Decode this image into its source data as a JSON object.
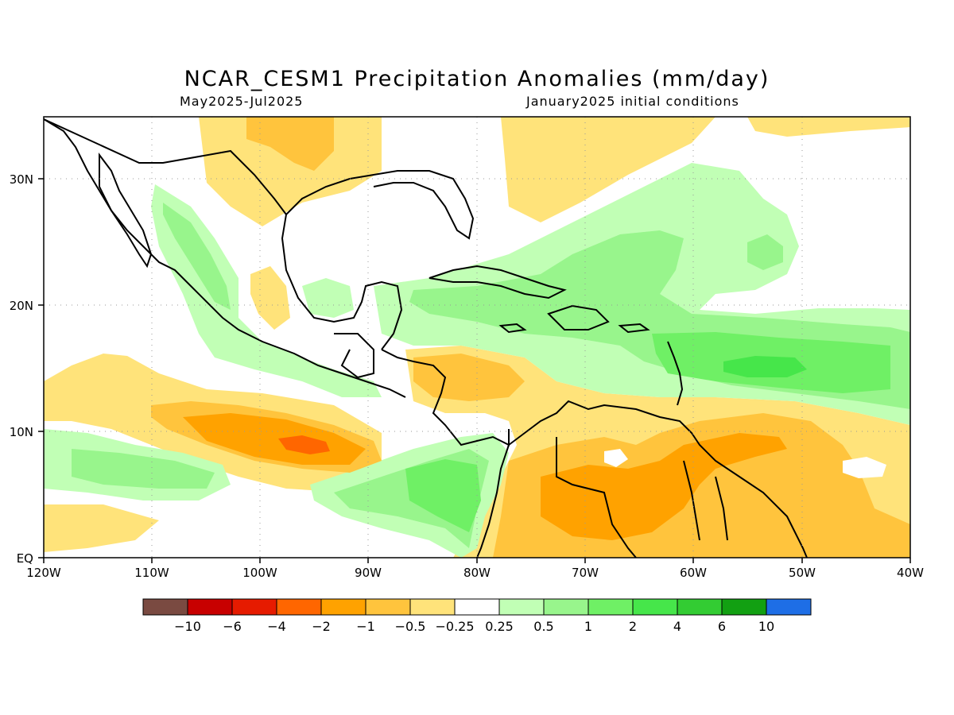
{
  "title": "NCAR_CESM1 Precipitation Anomalies (mm/day)",
  "subtitle_left": "May2025-Jul2025",
  "subtitle_right": "January2025 initial conditions",
  "axes": {
    "lon_labels": [
      "120W",
      "110W",
      "100W",
      "90W",
      "80W",
      "70W",
      "60W",
      "50W",
      "40W"
    ],
    "lat_labels": [
      "EQ",
      "10N",
      "20N",
      "30N"
    ]
  },
  "colorbar": {
    "colors": [
      "#7a4a41",
      "#c80000",
      "#e61b00",
      "#ff6600",
      "#ffa200",
      "#ffc43d",
      "#ffe37a",
      "#ffffff",
      "#c1ffb5",
      "#98f58c",
      "#6ff065",
      "#46e64a",
      "#33cc33",
      "#12a012",
      "#1e6ee6"
    ],
    "labels": [
      "-10",
      "-6",
      "-4",
      "-2",
      "-1",
      "-0.5",
      "-0.25",
      "0.25",
      "0.5",
      "1",
      "2",
      "4",
      "6",
      "10"
    ]
  }
}
